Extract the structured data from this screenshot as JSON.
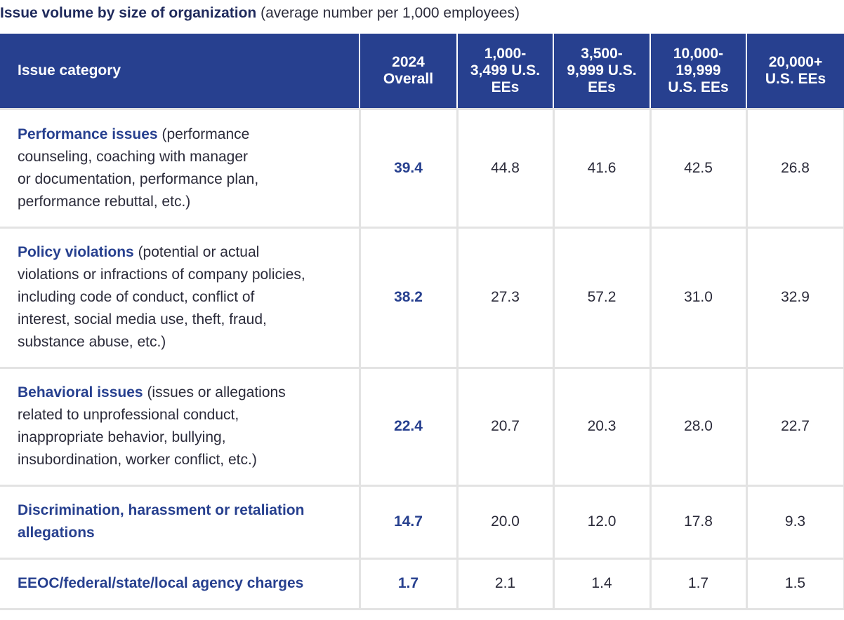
{
  "chart_data": {
    "type": "table",
    "title": "Issue volume by size of organization",
    "subtitle": "(average number per 1,000 employees)",
    "columns": [
      "Issue category",
      "2024 Overall",
      "1,000-3,499 U.S. EEs",
      "3,500-9,999 U.S. EEs",
      "10,000-19,999 U.S. EEs",
      "20,000+ U.S. EEs"
    ],
    "header_lines": [
      [
        "Issue category"
      ],
      [
        "2024",
        "Overall"
      ],
      [
        "1,000-",
        "3,499 U.S.",
        "EEs"
      ],
      [
        "3,500-",
        "9,999 U.S.",
        "EEs"
      ],
      [
        "10,000-",
        "19,999",
        "U.S. EEs"
      ],
      [
        "20,000+",
        "U.S. EEs"
      ]
    ],
    "rows": [
      {
        "category": "Performance issues",
        "description_lines": [
          "(performance",
          "counseling, coaching with manager",
          "or documentation, performance plan,",
          "performance rebuttal, etc.)"
        ],
        "values": [
          "39.4",
          "44.8",
          "41.6",
          "42.5",
          "26.8"
        ]
      },
      {
        "category": "Policy violations",
        "description_lines": [
          "(potential or actual",
          "violations or infractions of company policies,",
          "including code of conduct, conflict of",
          "interest, social media use, theft, fraud,",
          "substance abuse, etc.)"
        ],
        "values": [
          "38.2",
          "27.3",
          "57.2",
          "31.0",
          "32.9"
        ]
      },
      {
        "category": "Behavioral issues",
        "description_lines": [
          "(issues or allegations",
          "related to unprofessional conduct,",
          "inappropriate behavior, bullying,",
          "insubordination, worker conflict, etc.)"
        ],
        "values": [
          "22.4",
          "20.7",
          "20.3",
          "28.0",
          "22.7"
        ]
      },
      {
        "category_lines": [
          "Discrimination, harassment or retaliation",
          "allegations"
        ],
        "values": [
          "14.7",
          "20.0",
          "12.0",
          "17.8",
          "9.3"
        ]
      },
      {
        "category_lines": [
          "EEOC/federal/state/local agency charges"
        ],
        "values": [
          "1.7",
          "2.1",
          "1.4",
          "1.7",
          "1.5"
        ]
      }
    ]
  },
  "colors": {
    "header_bg": "#27408f",
    "accent_text": "#27408f",
    "title_text": "#1f2a5c",
    "grid_line": "#e3e3e3"
  }
}
